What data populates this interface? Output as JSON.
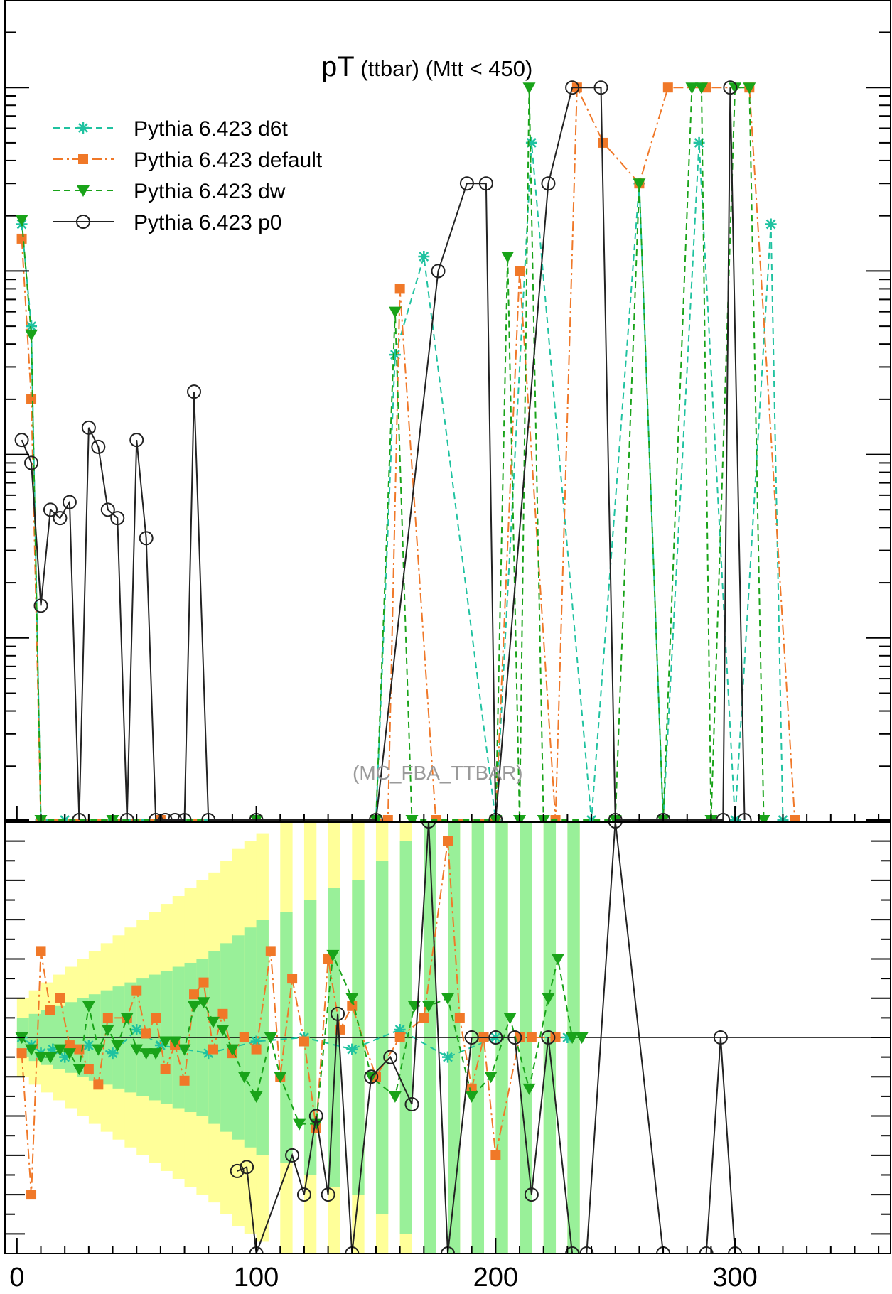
{
  "chart_data": [
    {
      "type": "line",
      "panel": "main",
      "title_main": "pT",
      "title_rest": " (ttbar) (Mtt < 450)",
      "watermark": "(MC_FBA_TTBAR)",
      "xlim": [
        -5,
        365
      ],
      "yscale": "log",
      "ylim": [
        0.0001,
        3
      ],
      "legend_position": "top-left",
      "series": [
        {
          "name": "Pythia 6.423 d6t",
          "color": "#1fc2a0",
          "style": "dashed",
          "marker": "star",
          "points": [
            [
              2,
              0.18
            ],
            [
              6,
              0.05
            ],
            [
              10,
              0
            ],
            [
              20,
              0
            ],
            [
              40,
              0
            ],
            [
              60,
              0
            ],
            [
              100,
              0
            ],
            [
              150,
              0
            ],
            [
              158,
              0.035
            ],
            [
              170,
              0.12
            ],
            [
              200,
              0
            ],
            [
              215,
              0.5
            ],
            [
              240,
              0
            ],
            [
              260,
              0.3
            ],
            [
              270,
              0
            ],
            [
              285,
              0.5
            ],
            [
              300,
              0
            ],
            [
              315,
              0.18
            ],
            [
              320,
              0
            ]
          ]
        },
        {
          "name": "Pythia 6.423 default",
          "color": "#f07828",
          "style": "dashdot",
          "marker": "square",
          "points": [
            [
              2,
              0.15
            ],
            [
              6,
              0.02
            ],
            [
              10,
              0
            ],
            [
              60,
              0
            ],
            [
              155,
              0
            ],
            [
              160,
              0.08
            ],
            [
              175,
              0
            ],
            [
              200,
              0
            ],
            [
              210,
              0.1
            ],
            [
              225,
              0
            ],
            [
              234,
              1
            ],
            [
              245,
              0.5
            ],
            [
              260,
              0.3
            ],
            [
              272,
              1
            ],
            [
              288,
              1
            ],
            [
              306,
              1
            ],
            [
              325,
              0
            ]
          ]
        },
        {
          "name": "Pythia 6.423 dw",
          "color": "#19a319",
          "style": "dashed",
          "marker": "triangle-down",
          "points": [
            [
              2,
              0.19
            ],
            [
              6,
              0.045
            ],
            [
              10,
              0
            ],
            [
              40,
              0
            ],
            [
              100,
              0
            ],
            [
              150,
              0
            ],
            [
              158,
              0.06
            ],
            [
              165,
              0
            ],
            [
              200,
              0
            ],
            [
              205,
              0.12
            ],
            [
              210,
              0
            ],
            [
              214,
              1
            ],
            [
              220,
              0
            ],
            [
              250,
              0
            ],
            [
              260,
              0.3
            ],
            [
              270,
              0
            ],
            [
              282,
              1
            ],
            [
              286,
              1
            ],
            [
              290,
              0
            ],
            [
              300,
              1
            ],
            [
              306,
              1
            ],
            [
              312,
              0
            ]
          ]
        },
        {
          "name": "Pythia 6.423 p0",
          "color": "#222222",
          "style": "solid",
          "marker": "circle",
          "points": [
            [
              2,
              0.012
            ],
            [
              6,
              0.009
            ],
            [
              10,
              0.0015
            ],
            [
              14,
              0.005
            ],
            [
              18,
              0.0045
            ],
            [
              22,
              0.0055
            ],
            [
              26,
              0
            ],
            [
              30,
              0.014
            ],
            [
              34,
              0.011
            ],
            [
              38,
              0.005
            ],
            [
              42,
              0.0045
            ],
            [
              46,
              0
            ],
            [
              50,
              0.012
            ],
            [
              54,
              0.0035
            ],
            [
              58,
              0
            ],
            [
              62,
              0
            ],
            [
              66,
              0
            ],
            [
              70,
              0
            ],
            [
              74,
              0.022
            ],
            [
              80,
              0
            ],
            [
              100,
              0
            ],
            [
              150,
              0
            ],
            [
              176,
              0.1
            ],
            [
              188,
              0.3
            ],
            [
              196,
              0.3
            ],
            [
              200,
              0
            ],
            [
              222,
              0.3
            ],
            [
              232,
              1
            ],
            [
              244,
              1
            ],
            [
              250,
              0
            ],
            [
              270,
              0
            ],
            [
              295,
              0
            ],
            [
              298,
              1
            ],
            [
              304,
              0
            ]
          ]
        }
      ]
    },
    {
      "type": "line",
      "panel": "ratio",
      "xlim": [
        -5,
        365
      ],
      "ylim": [
        0.45,
        1.55
      ],
      "xticks": [
        0,
        100,
        200,
        300
      ],
      "reference_line": 1,
      "band_colors": {
        "outer": "#ffff99",
        "inner": "#99f099"
      },
      "band": [
        [
          0,
          0.05,
          0.1
        ],
        [
          5,
          0.06,
          0.12
        ],
        [
          10,
          0.07,
          0.14
        ],
        [
          15,
          0.08,
          0.16
        ],
        [
          20,
          0.09,
          0.18
        ],
        [
          25,
          0.1,
          0.2
        ],
        [
          30,
          0.11,
          0.22
        ],
        [
          35,
          0.12,
          0.24
        ],
        [
          40,
          0.13,
          0.26
        ],
        [
          45,
          0.14,
          0.28
        ],
        [
          50,
          0.15,
          0.3
        ],
        [
          55,
          0.16,
          0.32
        ],
        [
          60,
          0.17,
          0.34
        ],
        [
          65,
          0.18,
          0.36
        ],
        [
          70,
          0.19,
          0.38
        ],
        [
          75,
          0.2,
          0.4
        ],
        [
          80,
          0.22,
          0.42
        ],
        [
          85,
          0.24,
          0.45
        ],
        [
          90,
          0.26,
          0.48
        ],
        [
          95,
          0.28,
          0.5
        ],
        [
          100,
          0.3,
          0.52
        ],
        [
          110,
          0.32,
          0.55
        ],
        [
          120,
          0.35,
          0.6
        ],
        [
          130,
          0.38,
          0.65
        ],
        [
          140,
          0.4,
          0.7
        ],
        [
          150,
          0.45,
          0.75
        ],
        [
          160,
          0.5,
          0.8
        ],
        [
          170,
          0.55,
          0.85
        ],
        [
          180,
          0.6,
          0.9
        ],
        [
          190,
          0.65,
          0.9
        ],
        [
          200,
          0.7,
          0.9
        ],
        [
          210,
          0.75,
          0.9
        ],
        [
          220,
          0.78,
          0.9
        ],
        [
          230,
          0.8,
          0.9
        ]
      ],
      "series": [
        {
          "name": "Pythia 6.423 d6t",
          "color": "#1fc2a0",
          "style": "dashed",
          "marker": "star",
          "points": [
            [
              2,
              1
            ],
            [
              6,
              0.98
            ],
            [
              10,
              0.96
            ],
            [
              15,
              0.97
            ],
            [
              20,
              0.95
            ],
            [
              30,
              0.98
            ],
            [
              40,
              0.96
            ],
            [
              50,
              1.02
            ],
            [
              60,
              0.98
            ],
            [
              80,
              0.96
            ],
            [
              100,
              0.99
            ],
            [
              120,
              1
            ],
            [
              140,
              0.97
            ],
            [
              160,
              1.02
            ],
            [
              180,
              0.95
            ],
            [
              200,
              1
            ],
            [
              230,
              1
            ]
          ]
        },
        {
          "name": "Pythia 6.423 default",
          "color": "#f07828",
          "style": "dashdot",
          "marker": "square",
          "points": [
            [
              2,
              0.96
            ],
            [
              6,
              0.6
            ],
            [
              10,
              1.22
            ],
            [
              14,
              1.07
            ],
            [
              18,
              1.1
            ],
            [
              22,
              0.98
            ],
            [
              26,
              0.97
            ],
            [
              30,
              0.92
            ],
            [
              34,
              0.88
            ],
            [
              38,
              1.05
            ],
            [
              46,
              1.05
            ],
            [
              50,
              1.12
            ],
            [
              54,
              1.01
            ],
            [
              58,
              1.05
            ],
            [
              62,
              0.92
            ],
            [
              66,
              0.98
            ],
            [
              70,
              0.89
            ],
            [
              74,
              1.11
            ],
            [
              78,
              1.14
            ],
            [
              82,
              0.97
            ],
            [
              86,
              1.06
            ],
            [
              90,
              0.96
            ],
            [
              95,
              1.0
            ],
            [
              100,
              0.97
            ],
            [
              106,
              1.22
            ],
            [
              110,
              0.9
            ],
            [
              115,
              1.15
            ],
            [
              120,
              0.99
            ],
            [
              125,
              0.77
            ],
            [
              130,
              1.2
            ],
            [
              135,
              1.02
            ],
            [
              140,
              1.08
            ],
            [
              150,
              0.9
            ],
            [
              160,
              1.0
            ],
            [
              170,
              1.05
            ],
            [
              180,
              1.5
            ],
            [
              185,
              1.05
            ],
            [
              190,
              0.87
            ],
            [
              195,
              1.0
            ],
            [
              200,
              0.7
            ],
            [
              210,
              1.0
            ],
            [
              215,
              1.0
            ],
            [
              225,
              1.0
            ]
          ]
        },
        {
          "name": "Pythia 6.423 dw",
          "color": "#19a319",
          "style": "dashed",
          "marker": "triangle-down",
          "points": [
            [
              2,
              1.0
            ],
            [
              6,
              0.97
            ],
            [
              10,
              0.95
            ],
            [
              14,
              0.95
            ],
            [
              18,
              0.97
            ],
            [
              22,
              0.96
            ],
            [
              26,
              0.92
            ],
            [
              30,
              1.08
            ],
            [
              34,
              0.97
            ],
            [
              38,
              1.02
            ],
            [
              42,
              0.98
            ],
            [
              46,
              1.05
            ],
            [
              50,
              0.97
            ],
            [
              54,
              0.96
            ],
            [
              58,
              0.96
            ],
            [
              62,
              0.99
            ],
            [
              66,
              0.99
            ],
            [
              70,
              0.97
            ],
            [
              74,
              1.08
            ],
            [
              78,
              1.09
            ],
            [
              82,
              1.04
            ],
            [
              86,
              1.02
            ],
            [
              90,
              0.97
            ],
            [
              95,
              0.9
            ],
            [
              100,
              0.85
            ],
            [
              106,
              1.0
            ],
            [
              110,
              0.9
            ],
            [
              118,
              0.78
            ],
            [
              125,
              0.78
            ],
            [
              132,
              1.21
            ],
            [
              140,
              1.1
            ],
            [
              148,
              0.9
            ],
            [
              158,
              0.85
            ],
            [
              166,
              1.08
            ],
            [
              172,
              1.08
            ],
            [
              180,
              1.1
            ],
            [
              190,
              0.85
            ],
            [
              198,
              0.9
            ],
            [
              206,
              1.05
            ],
            [
              214,
              0.87
            ],
            [
              222,
              1.1
            ],
            [
              226,
              1.2
            ],
            [
              232,
              1.0
            ],
            [
              236,
              1.0
            ]
          ]
        },
        {
          "name": "Pythia 6.423 p0",
          "color": "#222222",
          "style": "solid",
          "marker": "circle",
          "points": [
            [
              92,
              0.66
            ],
            [
              96,
              0.67
            ],
            [
              100,
              0.45
            ],
            [
              115,
              0.7
            ],
            [
              120,
              0.6
            ],
            [
              125,
              0.8
            ],
            [
              130,
              0.6
            ],
            [
              134,
              1.06
            ],
            [
              140,
              0.45
            ],
            [
              148,
              0.9
            ],
            [
              156,
              0.95
            ],
            [
              165,
              0.83
            ],
            [
              172,
              1.55
            ],
            [
              180,
              0.45
            ],
            [
              190,
              1.0
            ],
            [
              200,
              1.0
            ],
            [
              208,
              1.0
            ],
            [
              215,
              0.6
            ],
            [
              222,
              1.0
            ],
            [
              232,
              0.45
            ],
            [
              238,
              0.45
            ],
            [
              250,
              1.55
            ],
            [
              270,
              0.45
            ],
            [
              288,
              0.45
            ],
            [
              294,
              1.0
            ],
            [
              300,
              0.45
            ]
          ]
        }
      ]
    }
  ]
}
